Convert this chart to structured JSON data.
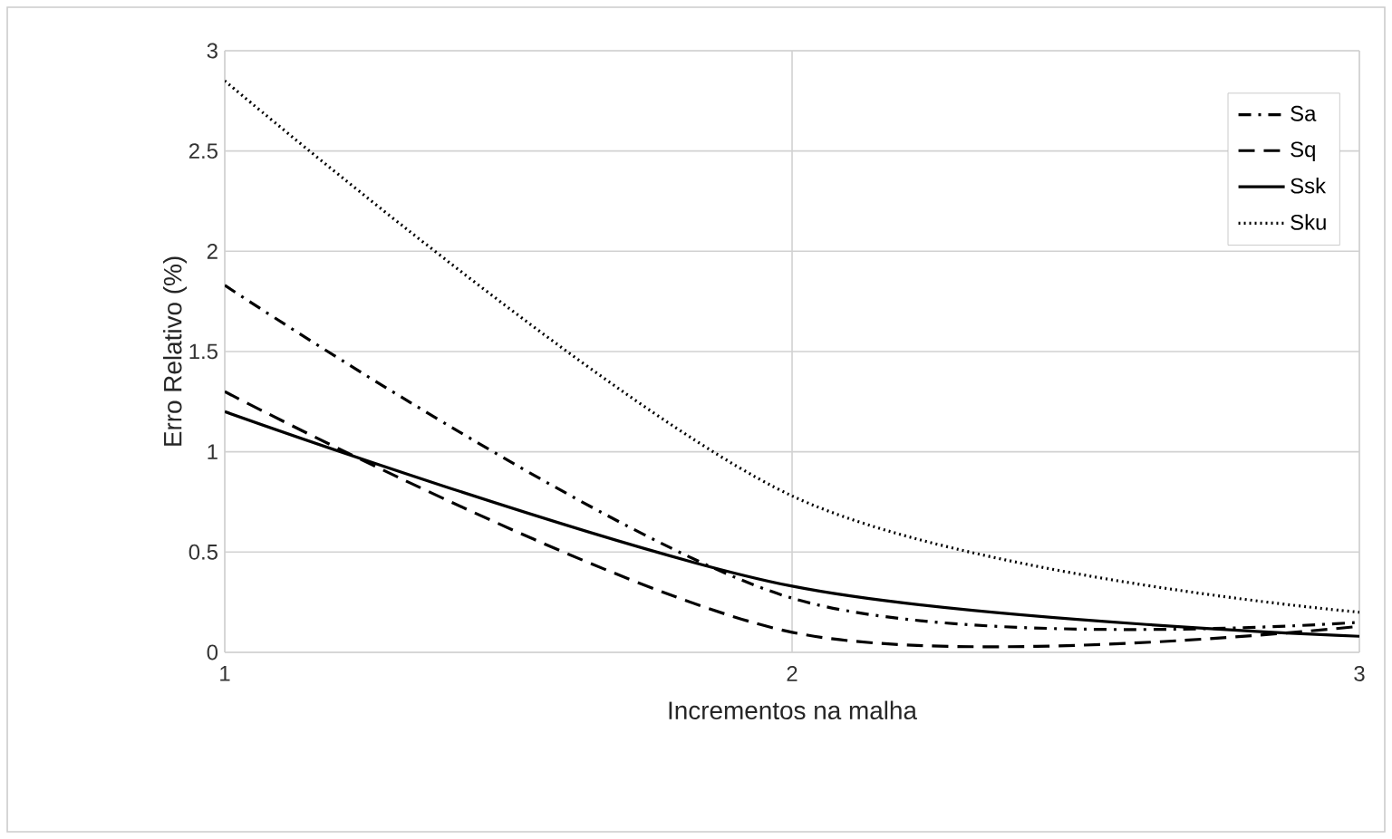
{
  "chart_data": {
    "type": "line",
    "xlabel": "Incrementos na malha",
    "ylabel": "Erro Relativo (%)",
    "x": [
      1,
      2,
      3
    ],
    "series": [
      {
        "name": "Sa",
        "color": "#000000",
        "line_style": "dashdot",
        "values": [
          1.83,
          0.27,
          0.15
        ]
      },
      {
        "name": "Sq",
        "color": "#000000",
        "line_style": "dashed",
        "values": [
          1.3,
          0.1,
          0.13
        ]
      },
      {
        "name": "Ssk",
        "color": "#000000",
        "line_style": "solid",
        "values": [
          1.2,
          0.33,
          0.08
        ]
      },
      {
        "name": "Sku",
        "color": "#000000",
        "line_style": "dotted",
        "values": [
          2.85,
          0.78,
          0.2
        ]
      }
    ],
    "xlim": [
      1,
      3
    ],
    "xticks": [
      1,
      2,
      3
    ],
    "ylim": [
      0,
      3
    ],
    "yticks": [
      0,
      0.5,
      1,
      1.5,
      2,
      2.5,
      3
    ],
    "grid": true,
    "legend": "top right",
    "marker": "none"
  }
}
